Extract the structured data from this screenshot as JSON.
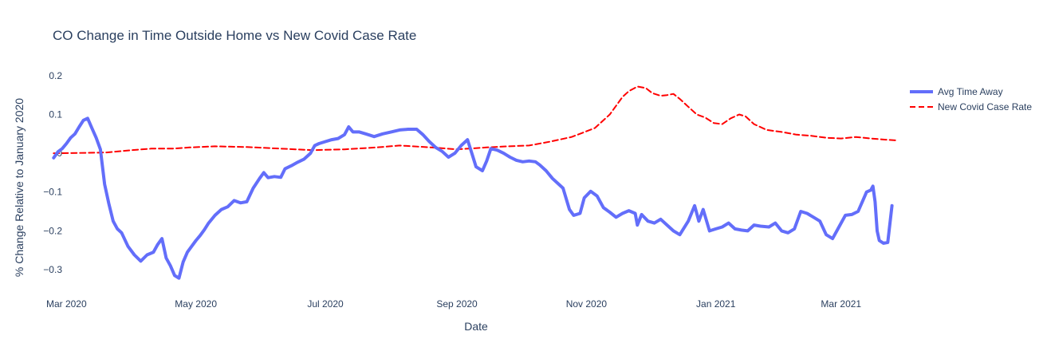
{
  "chart_data": {
    "type": "line",
    "title": "CO Change in Time Outside Home vs New Covid Case Rate",
    "xlabel": "Date",
    "ylabel": "% Change Relative to January 2020",
    "x_ticks": [
      {
        "date": "2020-03-01",
        "label": "Mar 2020"
      },
      {
        "date": "2020-05-01",
        "label": "May 2020"
      },
      {
        "date": "2020-07-01",
        "label": "Jul 2020"
      },
      {
        "date": "2020-09-01",
        "label": "Sep 2020"
      },
      {
        "date": "2020-11-01",
        "label": "Nov 2020"
      },
      {
        "date": "2021-01-01",
        "label": "Jan 2021"
      },
      {
        "date": "2021-03-01",
        "label": "Mar 2021"
      }
    ],
    "y_ticks": [
      {
        "value": 0.2,
        "label": "0.2"
      },
      {
        "value": 0.1,
        "label": "0.1"
      },
      {
        "value": 0,
        "label": "0"
      },
      {
        "value": -0.1,
        "label": "−0.1"
      },
      {
        "value": -0.2,
        "label": "−0.2"
      },
      {
        "value": -0.3,
        "label": "−0.3"
      }
    ],
    "xlim": [
      "2020-02-25",
      "2021-03-21"
    ],
    "ylim": [
      -0.335,
      0.21
    ],
    "grid": false,
    "legend_position": "top-right",
    "series": [
      {
        "name": "Avg Time Away",
        "color": "#636efa",
        "style": "solid",
        "points": [
          [
            "2020-02-24",
            -0.012
          ],
          [
            "2020-02-26",
            0.004
          ],
          [
            "2020-02-28",
            0.012
          ],
          [
            "2020-03-01",
            0.025
          ],
          [
            "2020-03-03",
            0.04
          ],
          [
            "2020-03-05",
            0.05
          ],
          [
            "2020-03-07",
            0.068
          ],
          [
            "2020-03-09",
            0.085
          ],
          [
            "2020-03-11",
            0.09
          ],
          [
            "2020-03-13",
            0.065
          ],
          [
            "2020-03-15",
            0.04
          ],
          [
            "2020-03-17",
            0.01
          ],
          [
            "2020-03-19",
            -0.08
          ],
          [
            "2020-03-21",
            -0.13
          ],
          [
            "2020-03-23",
            -0.175
          ],
          [
            "2020-03-25",
            -0.195
          ],
          [
            "2020-03-27",
            -0.205
          ],
          [
            "2020-03-30",
            -0.24
          ],
          [
            "2020-04-02",
            -0.262
          ],
          [
            "2020-04-05",
            -0.278
          ],
          [
            "2020-04-08",
            -0.262
          ],
          [
            "2020-04-11",
            -0.255
          ],
          [
            "2020-04-13",
            -0.235
          ],
          [
            "2020-04-15",
            -0.22
          ],
          [
            "2020-04-17",
            -0.27
          ],
          [
            "2020-04-19",
            -0.29
          ],
          [
            "2020-04-21",
            -0.315
          ],
          [
            "2020-04-23",
            -0.322
          ],
          [
            "2020-04-25",
            -0.28
          ],
          [
            "2020-04-27",
            -0.255
          ],
          [
            "2020-04-29",
            -0.24
          ],
          [
            "2020-05-01",
            -0.225
          ],
          [
            "2020-05-03",
            -0.212
          ],
          [
            "2020-05-05",
            -0.197
          ],
          [
            "2020-05-07",
            -0.18
          ],
          [
            "2020-05-10",
            -0.16
          ],
          [
            "2020-05-13",
            -0.145
          ],
          [
            "2020-05-16",
            -0.138
          ],
          [
            "2020-05-19",
            -0.122
          ],
          [
            "2020-05-22",
            -0.128
          ],
          [
            "2020-05-25",
            -0.125
          ],
          [
            "2020-05-28",
            -0.09
          ],
          [
            "2020-05-31",
            -0.065
          ],
          [
            "2020-06-02",
            -0.05
          ],
          [
            "2020-06-04",
            -0.063
          ],
          [
            "2020-06-07",
            -0.06
          ],
          [
            "2020-06-10",
            -0.062
          ],
          [
            "2020-06-12",
            -0.04
          ],
          [
            "2020-06-15",
            -0.032
          ],
          [
            "2020-06-18",
            -0.023
          ],
          [
            "2020-06-21",
            -0.015
          ],
          [
            "2020-06-24",
            0.0
          ],
          [
            "2020-06-26",
            0.02
          ],
          [
            "2020-06-28",
            0.025
          ],
          [
            "2020-07-01",
            0.03
          ],
          [
            "2020-07-04",
            0.035
          ],
          [
            "2020-07-07",
            0.038
          ],
          [
            "2020-07-10",
            0.048
          ],
          [
            "2020-07-12",
            0.068
          ],
          [
            "2020-07-14",
            0.055
          ],
          [
            "2020-07-17",
            0.055
          ],
          [
            "2020-07-20",
            0.05
          ],
          [
            "2020-07-24",
            0.043
          ],
          [
            "2020-07-28",
            0.05
          ],
          [
            "2020-08-01",
            0.055
          ],
          [
            "2020-08-05",
            0.06
          ],
          [
            "2020-08-09",
            0.062
          ],
          [
            "2020-08-13",
            0.062
          ],
          [
            "2020-08-16",
            0.048
          ],
          [
            "2020-08-19",
            0.03
          ],
          [
            "2020-08-22",
            0.015
          ],
          [
            "2020-08-25",
            0.005
          ],
          [
            "2020-08-28",
            -0.01
          ],
          [
            "2020-08-31",
            0.0
          ],
          [
            "2020-09-03",
            0.02
          ],
          [
            "2020-09-06",
            0.035
          ],
          [
            "2020-09-08",
            0.0
          ],
          [
            "2020-09-10",
            -0.035
          ],
          [
            "2020-09-13",
            -0.045
          ],
          [
            "2020-09-15",
            -0.02
          ],
          [
            "2020-09-17",
            0.012
          ],
          [
            "2020-09-20",
            0.008
          ],
          [
            "2020-09-23",
            0.0
          ],
          [
            "2020-09-26",
            -0.01
          ],
          [
            "2020-09-29",
            -0.018
          ],
          [
            "2020-10-02",
            -0.022
          ],
          [
            "2020-10-05",
            -0.02
          ],
          [
            "2020-10-08",
            -0.022
          ],
          [
            "2020-10-10",
            -0.03
          ],
          [
            "2020-10-13",
            -0.045
          ],
          [
            "2020-10-16",
            -0.065
          ],
          [
            "2020-10-19",
            -0.08
          ],
          [
            "2020-10-21",
            -0.09
          ],
          [
            "2020-10-24",
            -0.145
          ],
          [
            "2020-10-26",
            -0.16
          ],
          [
            "2020-10-29",
            -0.155
          ],
          [
            "2020-10-31",
            -0.115
          ],
          [
            "2020-11-03",
            -0.098
          ],
          [
            "2020-11-06",
            -0.11
          ],
          [
            "2020-11-09",
            -0.14
          ],
          [
            "2020-11-12",
            -0.152
          ],
          [
            "2020-11-15",
            -0.165
          ],
          [
            "2020-11-18",
            -0.155
          ],
          [
            "2020-11-21",
            -0.148
          ],
          [
            "2020-11-24",
            -0.155
          ],
          [
            "2020-11-25",
            -0.185
          ],
          [
            "2020-11-27",
            -0.158
          ],
          [
            "2020-11-30",
            -0.175
          ],
          [
            "2020-12-03",
            -0.18
          ],
          [
            "2020-12-06",
            -0.17
          ],
          [
            "2020-12-09",
            -0.185
          ],
          [
            "2020-12-12",
            -0.2
          ],
          [
            "2020-12-15",
            -0.21
          ],
          [
            "2020-12-19",
            -0.175
          ],
          [
            "2020-12-22",
            -0.135
          ],
          [
            "2020-12-24",
            -0.175
          ],
          [
            "2020-12-26",
            -0.145
          ],
          [
            "2020-12-29",
            -0.2
          ],
          [
            "2021-01-01",
            -0.195
          ],
          [
            "2021-01-04",
            -0.19
          ],
          [
            "2021-01-07",
            -0.18
          ],
          [
            "2021-01-10",
            -0.195
          ],
          [
            "2021-01-13",
            -0.198
          ],
          [
            "2021-01-16",
            -0.2
          ],
          [
            "2021-01-19",
            -0.185
          ],
          [
            "2021-01-22",
            -0.188
          ],
          [
            "2021-01-26",
            -0.19
          ],
          [
            "2021-01-29",
            -0.18
          ],
          [
            "2021-02-01",
            -0.2
          ],
          [
            "2021-02-04",
            -0.205
          ],
          [
            "2021-02-07",
            -0.195
          ],
          [
            "2021-02-10",
            -0.15
          ],
          [
            "2021-02-13",
            -0.155
          ],
          [
            "2021-02-16",
            -0.165
          ],
          [
            "2021-02-19",
            -0.175
          ],
          [
            "2021-02-22",
            -0.21
          ],
          [
            "2021-02-25",
            -0.22
          ],
          [
            "2021-02-28",
            -0.19
          ],
          [
            "2021-03-03",
            -0.16
          ],
          [
            "2021-03-06",
            -0.158
          ],
          [
            "2021-03-09",
            -0.15
          ],
          [
            "2021-03-11",
            -0.125
          ],
          [
            "2021-03-13",
            -0.1
          ],
          [
            "2021-03-15",
            -0.095
          ],
          [
            "2021-03-16",
            -0.085
          ],
          [
            "2021-03-17",
            -0.125
          ],
          [
            "2021-03-18",
            -0.2
          ],
          [
            "2021-03-19",
            -0.225
          ],
          [
            "2021-03-21",
            -0.232
          ],
          [
            "2021-03-23",
            -0.23
          ],
          [
            "2021-03-25",
            -0.135
          ]
        ]
      },
      {
        "name": "New Covid Case Rate",
        "color": "#ff0000",
        "style": "dashed",
        "points": [
          [
            "2020-02-24",
            0.0
          ],
          [
            "2020-03-10",
            0.001
          ],
          [
            "2020-03-20",
            0.002
          ],
          [
            "2020-04-01",
            0.008
          ],
          [
            "2020-04-10",
            0.012
          ],
          [
            "2020-04-20",
            0.012
          ],
          [
            "2020-04-28",
            0.015
          ],
          [
            "2020-05-10",
            0.018
          ],
          [
            "2020-05-25",
            0.016
          ],
          [
            "2020-06-10",
            0.012
          ],
          [
            "2020-06-25",
            0.008
          ],
          [
            "2020-07-10",
            0.01
          ],
          [
            "2020-07-25",
            0.015
          ],
          [
            "2020-08-05",
            0.02
          ],
          [
            "2020-08-20",
            0.015
          ],
          [
            "2020-09-01",
            0.01
          ],
          [
            "2020-09-15",
            0.015
          ],
          [
            "2020-09-25",
            0.018
          ],
          [
            "2020-10-05",
            0.02
          ],
          [
            "2020-10-15",
            0.03
          ],
          [
            "2020-10-25",
            0.042
          ],
          [
            "2020-11-05",
            0.065
          ],
          [
            "2020-11-12",
            0.1
          ],
          [
            "2020-11-18",
            0.145
          ],
          [
            "2020-11-21",
            0.16
          ],
          [
            "2020-11-25",
            0.172
          ],
          [
            "2020-11-29",
            0.168
          ],
          [
            "2020-12-02",
            0.155
          ],
          [
            "2020-12-06",
            0.148
          ],
          [
            "2020-12-09",
            0.15
          ],
          [
            "2020-12-12",
            0.153
          ],
          [
            "2020-12-15",
            0.14
          ],
          [
            "2020-12-19",
            0.12
          ],
          [
            "2020-12-23",
            0.1
          ],
          [
            "2020-12-27",
            0.092
          ],
          [
            "2020-12-31",
            0.078
          ],
          [
            "2021-01-04",
            0.075
          ],
          [
            "2021-01-08",
            0.09
          ],
          [
            "2021-01-12",
            0.1
          ],
          [
            "2021-01-15",
            0.095
          ],
          [
            "2021-01-19",
            0.075
          ],
          [
            "2021-01-25",
            0.06
          ],
          [
            "2021-02-01",
            0.055
          ],
          [
            "2021-02-08",
            0.048
          ],
          [
            "2021-02-15",
            0.045
          ],
          [
            "2021-02-22",
            0.04
          ],
          [
            "2021-03-01",
            0.038
          ],
          [
            "2021-03-08",
            0.042
          ],
          [
            "2021-03-15",
            0.038
          ],
          [
            "2021-03-22",
            0.035
          ],
          [
            "2021-03-28",
            0.033
          ]
        ]
      }
    ]
  }
}
